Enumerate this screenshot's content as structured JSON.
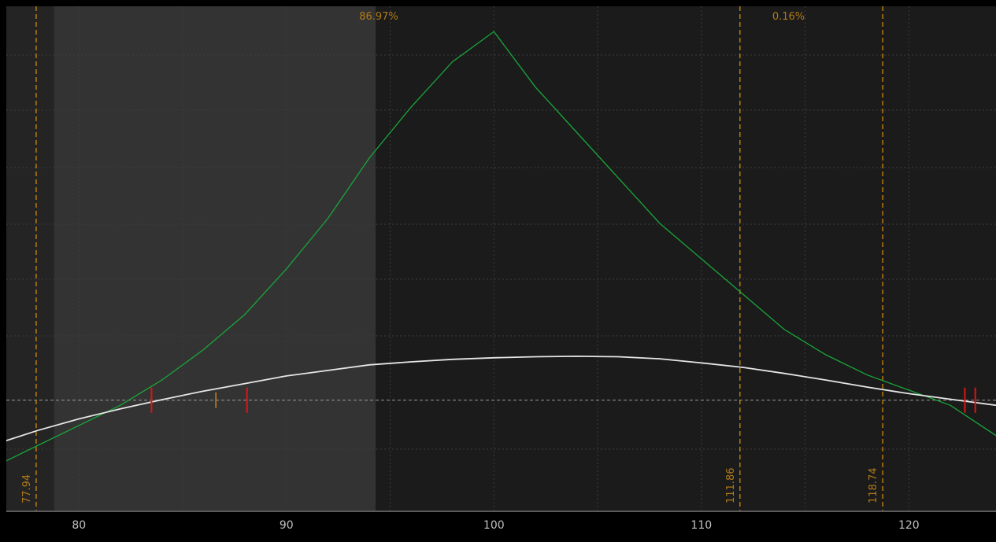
{
  "chart_data": {
    "type": "line",
    "title": "",
    "xlabel": "",
    "ylabel": "",
    "xlim": [
      76.5,
      124.2
    ],
    "ylim": [
      0,
      100
    ],
    "grid": true,
    "x_ticks": [
      80,
      90,
      100,
      110,
      120
    ],
    "tick_labels": [
      "80",
      "90",
      "100",
      "110",
      "120"
    ],
    "probability_labels": [
      {
        "x": 100,
        "text": "86.97%"
      },
      {
        "x": 114.2,
        "text": "0.16%"
      }
    ],
    "shaded_range": [
      78.8,
      94.3
    ],
    "zero_level": 22,
    "vertical_markers": [
      {
        "x": 77.94,
        "label": "77.94"
      },
      {
        "x": 111.86,
        "label": "111.86"
      },
      {
        "x": 118.74,
        "label": "118.74"
      }
    ],
    "series": [
      {
        "values_x": [
          76.5,
          78,
          80,
          82,
          84,
          86,
          88,
          90,
          92,
          94,
          96,
          98,
          100,
          102,
          104,
          106,
          108,
          110,
          112,
          114,
          116,
          118,
          120,
          122,
          124.2
        ],
        "values_y": [
          10,
          13,
          17,
          21,
          26,
          32,
          39,
          48,
          58,
          70,
          80,
          89,
          95,
          84,
          75,
          66,
          57,
          50,
          43,
          36,
          31,
          27,
          24,
          21,
          15
        ]
      },
      {
        "values_x": [
          76.5,
          78,
          80,
          82,
          84,
          86,
          88,
          90,
          92,
          94,
          96,
          98,
          100,
          102,
          104,
          106,
          108,
          110,
          112,
          114,
          116,
          118,
          120,
          122,
          124.2
        ],
        "values_y": [
          14,
          16,
          18.3,
          20.3,
          22.1,
          23.8,
          25.3,
          26.8,
          27.9,
          29.0,
          29.6,
          30.1,
          30.4,
          30.6,
          30.7,
          30.6,
          30.2,
          29.4,
          28.5,
          27.3,
          26.0,
          24.6,
          23.3,
          22.2,
          21.0
        ]
      }
    ],
    "breakeven_marks": [
      83.5,
      88.1,
      122.7,
      123.2
    ],
    "current_mark": 86.6,
    "colors": {
      "background": "#1b1b1b",
      "shaded": "#333333",
      "left_strip": "#242424",
      "grid": "#3c3c3c",
      "marker": "#d08a0a",
      "marker_text": "#b07a17",
      "green_line": "#19a63a",
      "white_line": "#e6e6e6",
      "zero_line": "#9a9a9a",
      "red_tick": "#e01414",
      "orange_tick": "#c9851a",
      "axis_band": "#000000",
      "axis_divider": "#5a5a5a",
      "tick_text": "#c0c0c0"
    }
  }
}
